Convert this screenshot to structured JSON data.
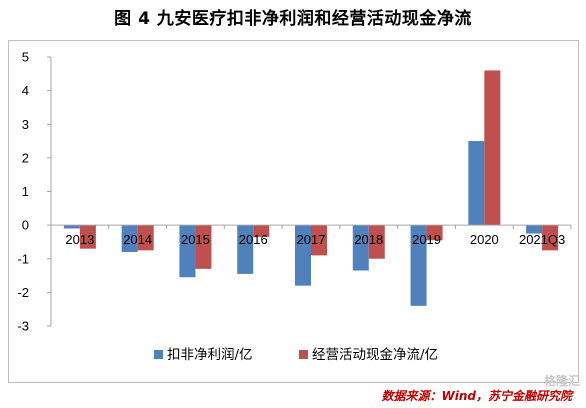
{
  "figure": {
    "title": "图 4  九安医疗扣非净利润和经营活动现金净流",
    "source": "数据来源：Wind，苏宁金融研究院",
    "watermark": "格隆汇"
  },
  "colors": {
    "series1": "#4f81bd",
    "series2": "#c0504d",
    "axis": "#a6a6a6"
  },
  "chart_data": {
    "type": "bar",
    "categories": [
      "2013",
      "2014",
      "2015",
      "2016",
      "2017",
      "2018",
      "2019",
      "2020",
      "2021Q3"
    ],
    "series": [
      {
        "name": "扣非净利润/亿",
        "values": [
          -0.1,
          -0.8,
          -1.55,
          -1.45,
          -1.8,
          -1.35,
          -2.4,
          2.5,
          -0.25
        ]
      },
      {
        "name": "经营活动现金净流/亿",
        "values": [
          -0.7,
          -0.75,
          -1.3,
          -0.35,
          -0.9,
          -1.0,
          -0.45,
          4.6,
          -0.75
        ]
      }
    ],
    "yticks": [
      5,
      4,
      3,
      2,
      1,
      0,
      -1,
      -2,
      -3
    ],
    "ylim": [
      -3,
      5
    ],
    "grid": false,
    "legend_position": "bottom"
  }
}
